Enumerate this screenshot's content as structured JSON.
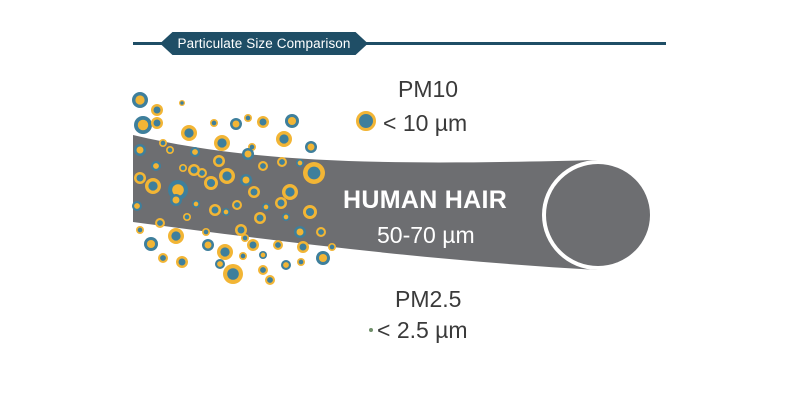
{
  "header": {
    "title": "Particulate Size Comparison"
  },
  "pm10": {
    "name": "PM10",
    "size": "< 10 µm"
  },
  "pm25": {
    "name": "PM2.5",
    "size": "< 2.5 µm"
  },
  "hair": {
    "title": "HUMAN HAIR",
    "size": "50-70 µm"
  },
  "colors": {
    "navy": "#1f4e66",
    "hair_gray": "#6d6e71",
    "particle_gold": "#f2b535",
    "particle_blue": "#3e7f9c",
    "fine_particle_green": "#6f8f6a",
    "text_dark": "#3a3a3a"
  }
}
